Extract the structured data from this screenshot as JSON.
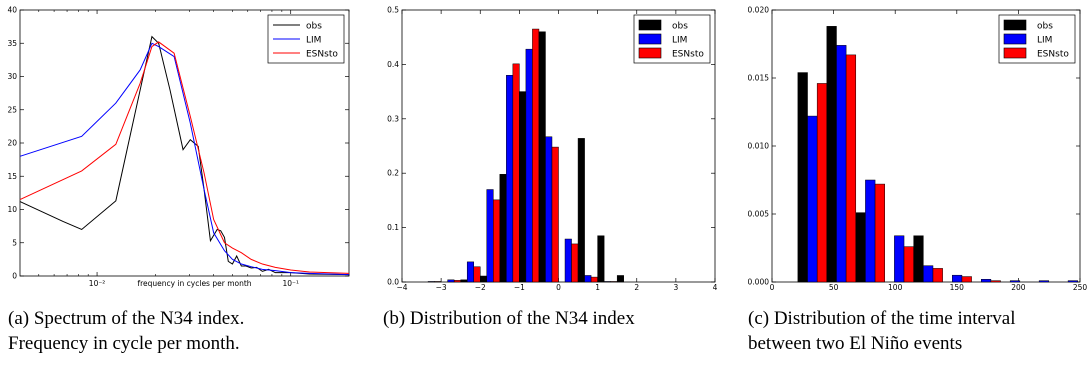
{
  "chart_data": [
    {
      "type": "line",
      "xscale": "log",
      "xlabel": "frequency in cycles per month",
      "ylabel": "",
      "xlim": [
        0.004,
        0.2
      ],
      "ylim": [
        0,
        40
      ],
      "xticks": [
        {
          "value": 0.01,
          "label": "10⁻²"
        },
        {
          "value": 0.1,
          "label": "10⁻¹"
        }
      ],
      "yticks": [
        0,
        5,
        10,
        15,
        20,
        25,
        30,
        35,
        40
      ],
      "legend": "top-right",
      "grid": false,
      "series": [
        {
          "name": "obs",
          "color": "#000000",
          "x": [
            0.004,
            0.00667,
            0.00833,
            0.0125,
            0.0167,
            0.0192,
            0.0208,
            0.0238,
            0.0278,
            0.0303,
            0.0333,
            0.0357,
            0.0385,
            0.0417,
            0.0435,
            0.0455,
            0.0476,
            0.05,
            0.0526,
            0.0556,
            0.0588,
            0.0625,
            0.0667,
            0.0714,
            0.0769,
            0.0833,
            0.1,
            0.125,
            0.2
          ],
          "y": [
            11.2,
            8.2,
            7.0,
            11.3,
            28.0,
            36.0,
            35.0,
            28.0,
            19.0,
            20.5,
            19.5,
            13.0,
            5.3,
            7.0,
            6.8,
            5.8,
            2.2,
            1.8,
            3.0,
            1.5,
            1.5,
            1.2,
            1.3,
            0.7,
            1.0,
            0.5,
            0.5,
            0.3,
            0.2
          ]
        },
        {
          "name": "LIM",
          "color": "#0000ff",
          "x": [
            0.004,
            0.00833,
            0.0125,
            0.0167,
            0.0192,
            0.0208,
            0.025,
            0.0303,
            0.0357,
            0.04,
            0.0455,
            0.05,
            0.0556,
            0.0625,
            0.0714,
            0.0833,
            0.1,
            0.125,
            0.2
          ],
          "y": [
            18.0,
            21.0,
            26.0,
            31.0,
            35.0,
            34.5,
            33.0,
            23.0,
            13.0,
            6.5,
            3.8,
            2.5,
            1.8,
            1.4,
            1.0,
            0.8,
            0.5,
            0.4,
            0.2
          ]
        },
        {
          "name": "ESNsto",
          "color": "#ff0000",
          "x": [
            0.004,
            0.00833,
            0.0125,
            0.0167,
            0.0192,
            0.0208,
            0.025,
            0.0303,
            0.0357,
            0.04,
            0.0455,
            0.05,
            0.0556,
            0.0625,
            0.0714,
            0.0833,
            0.1,
            0.125,
            0.2
          ],
          "y": [
            11.5,
            15.8,
            19.8,
            29.0,
            34.5,
            35.2,
            33.5,
            24.0,
            15.5,
            8.5,
            5.0,
            4.2,
            3.5,
            2.5,
            1.8,
            1.3,
            0.9,
            0.6,
            0.4
          ]
        }
      ],
      "caption": [
        "(a) Spectrum of the N34 index.",
        "Frequency in cycle per month."
      ]
    },
    {
      "type": "bar",
      "xlim": [
        -4,
        4
      ],
      "ylim": [
        0,
        0.5
      ],
      "xticks": [
        -4,
        -3,
        -2,
        -1,
        0,
        1,
        2,
        3,
        4
      ],
      "yticks": [
        0.0,
        0.1,
        0.2,
        0.3,
        0.4,
        0.5
      ],
      "xtick_labels": [
        "−4",
        "−3",
        "−2",
        "−1",
        "0",
        "1",
        "2",
        "3",
        "4"
      ],
      "ytick_labels": [
        "0.0",
        "0.1",
        "0.2",
        "0.3",
        "0.4",
        "0.5"
      ],
      "legend": "top-right",
      "grid": false,
      "bin_width": 0.5,
      "bin_starts": [
        -3.5,
        -3.0,
        -2.5,
        -2.0,
        -1.5,
        -1.0,
        -0.5,
        0.0,
        0.5,
        1.0,
        1.5,
        2.0,
        2.5,
        3.0
      ],
      "series": [
        {
          "name": "obs",
          "color": "#000000",
          "values": [
            0.0,
            0.0,
            0.004,
            0.011,
            0.198,
            0.35,
            0.46,
            0.0,
            0.264,
            0.085,
            0.012,
            0.0,
            0.0,
            0.0
          ]
        },
        {
          "name": "LIM",
          "color": "#0000ff",
          "values": [
            0.001,
            0.004,
            0.037,
            0.17,
            0.38,
            0.428,
            0.267,
            0.079,
            0.012,
            0.001,
            0.0,
            0.0,
            0.0,
            0.0
          ]
        },
        {
          "name": "ESNsto",
          "color": "#ff0000",
          "values": [
            0.001,
            0.003,
            0.028,
            0.151,
            0.401,
            0.465,
            0.248,
            0.07,
            0.009,
            0.001,
            0.0,
            0.0,
            0.0,
            0.0
          ]
        }
      ],
      "caption": [
        "(b) Distribution of the N34 index"
      ]
    },
    {
      "type": "bar",
      "xlim": [
        0,
        250
      ],
      "ylim": [
        0,
        0.02
      ],
      "xticks": [
        0,
        50,
        100,
        150,
        200,
        250
      ],
      "yticks": [
        0.0,
        0.005,
        0.01,
        0.015,
        0.02
      ],
      "xtick_labels": [
        "0",
        "50",
        "100",
        "150",
        "200",
        "250"
      ],
      "ytick_labels": [
        "0.000",
        "0.005",
        "0.010",
        "0.015",
        "0.020"
      ],
      "legend": "top-right",
      "grid": false,
      "bin_width": 23.5,
      "bin_starts": [
        21,
        44.5,
        68,
        91.5,
        115,
        138.5,
        162,
        185.5,
        209,
        232.5
      ],
      "series": [
        {
          "name": "obs",
          "color": "#000000",
          "values": [
            0.0154,
            0.0188,
            0.0051,
            0.0,
            0.0034,
            0.0,
            0.0,
            0.0,
            0.0,
            0.0
          ]
        },
        {
          "name": "LIM",
          "color": "#0000ff",
          "values": [
            0.0122,
            0.0174,
            0.0075,
            0.0034,
            0.0012,
            0.0005,
            0.0002,
            0.0001,
            0.0001,
            0.0001
          ]
        },
        {
          "name": "ESNsto",
          "color": "#ff0000",
          "values": [
            0.0146,
            0.0167,
            0.0072,
            0.0026,
            0.001,
            0.0004,
            0.0001,
            0.0,
            0.0,
            0.0
          ]
        }
      ],
      "caption": [
        "(c) Distribution of the time interval",
        "between two El Niño events"
      ]
    }
  ]
}
